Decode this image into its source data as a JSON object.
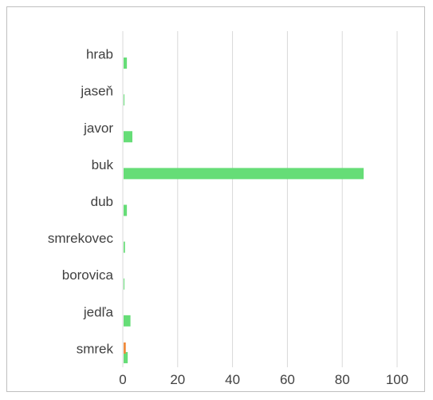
{
  "chart_data": {
    "type": "bar",
    "orientation": "horizontal",
    "title": "",
    "xlabel": "",
    "ylabel": "",
    "categories": [
      "hrab",
      "jaseň",
      "javor",
      "buk",
      "dub",
      "smrekovec",
      "borovica",
      "jedľa",
      "smrek"
    ],
    "series": [
      {
        "color": "#66dd77",
        "values": [
          1.2,
          0.1,
          3.2,
          87.5,
          1.2,
          0.5,
          0.1,
          2.5,
          1.5
        ]
      },
      {
        "color": "#f08a3c",
        "values": [
          0,
          0,
          0,
          0,
          0,
          0,
          0,
          0,
          0.8
        ]
      }
    ],
    "xlim": [
      0,
      100
    ],
    "xticks": [
      "0",
      "20",
      "40",
      "60",
      "80",
      "100"
    ],
    "grid": true,
    "legend": "none"
  }
}
